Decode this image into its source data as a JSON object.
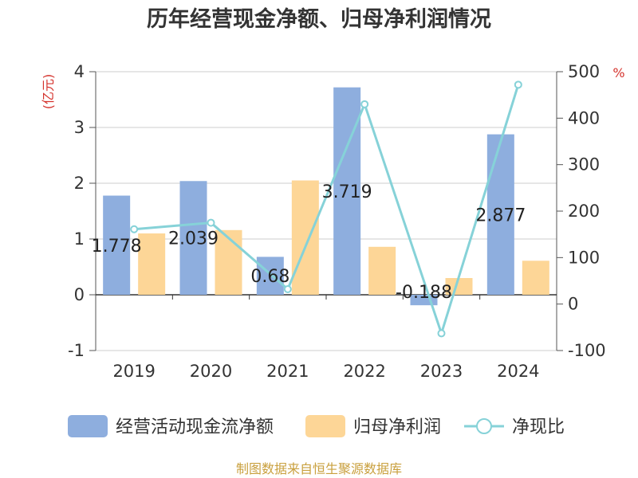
{
  "chart_data": {
    "type": "bar",
    "title": "历年经营现金净额、归母净利润情况",
    "categories": [
      "2019",
      "2020",
      "2021",
      "2022",
      "2023",
      "2024"
    ],
    "y_left": {
      "unit": "(亿元)",
      "ticks": [
        "4",
        "3",
        "2",
        "1",
        "0",
        "-1"
      ],
      "ylim": [
        -1,
        4
      ]
    },
    "y_right": {
      "unit": "%",
      "ticks": [
        "500",
        "400",
        "300",
        "200",
        "100",
        "0",
        "-100"
      ],
      "ylim": [
        -100,
        500
      ]
    },
    "series": [
      {
        "name": "经营活动现金流净额",
        "type": "bar",
        "axis": "left",
        "values": [
          1.778,
          2.039,
          0.68,
          3.719,
          -0.188,
          2.877
        ],
        "labels": [
          "1.778",
          "2.039",
          "0.68",
          "3.719",
          "-0.188",
          "2.877"
        ]
      },
      {
        "name": "归母净利润",
        "type": "bar",
        "axis": "left",
        "values": [
          1.1,
          1.16,
          2.05,
          0.86,
          0.3,
          0.61
        ]
      },
      {
        "name": "净现比",
        "type": "line",
        "axis": "right",
        "values": [
          161,
          175,
          32,
          430,
          -63,
          472
        ]
      }
    ],
    "colors": {
      "bar1": "#8eaede",
      "bar2": "#fdd697",
      "line": "#86d2d8",
      "axis_unit": "#d4322c",
      "source": "#c9a03e"
    },
    "legend_position": "bottom",
    "grid": true
  },
  "source": "制图数据来自恒生聚源数据库"
}
